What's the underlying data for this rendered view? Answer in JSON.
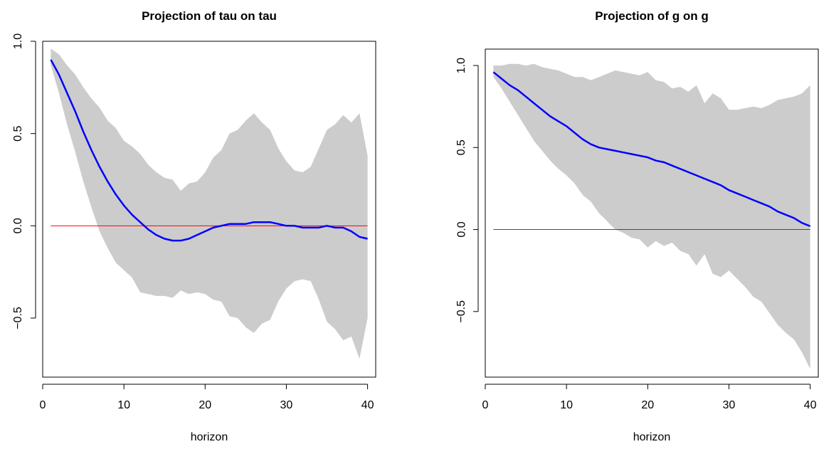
{
  "chart_data": [
    {
      "type": "line",
      "title": "Projection of tau on tau",
      "xlabel": "horizon",
      "ylabel": "",
      "xlim": [
        0,
        41
      ],
      "ylim": [
        -0.82,
        1.0
      ],
      "xticks": [
        0,
        10,
        20,
        30,
        40
      ],
      "yticks": [
        -0.5,
        0.0,
        0.5,
        1.0
      ],
      "ytick_labels": [
        "−0.5",
        "0.0",
        "0.5",
        "1.0"
      ],
      "grid": false,
      "zero_line": {
        "y": 0.0,
        "color": "#ff0000"
      },
      "colors": {
        "line": "#0000ff",
        "band": "#cccccc",
        "zero": "#ff0000"
      },
      "x": [
        1,
        2,
        3,
        4,
        5,
        6,
        7,
        8,
        9,
        10,
        11,
        12,
        13,
        14,
        15,
        16,
        17,
        18,
        19,
        20,
        21,
        22,
        23,
        24,
        25,
        26,
        27,
        28,
        29,
        30,
        31,
        32,
        33,
        34,
        35,
        36,
        37,
        38,
        39,
        40
      ],
      "series": [
        {
          "values": [
            0.9,
            0.82,
            0.72,
            0.62,
            0.51,
            0.41,
            0.32,
            0.24,
            0.17,
            0.11,
            0.06,
            0.02,
            -0.02,
            -0.05,
            -0.07,
            -0.08,
            -0.08,
            -0.07,
            -0.05,
            -0.03,
            -0.01,
            0.0,
            0.01,
            0.01,
            0.01,
            0.02,
            0.02,
            0.02,
            0.01,
            0.0,
            0.0,
            -0.01,
            -0.01,
            -0.01,
            0.0,
            -0.01,
            -0.01,
            -0.03,
            -0.06,
            -0.07
          ]
        },
        {
          "type": "band",
          "lower": [
            0.87,
            0.72,
            0.55,
            0.4,
            0.24,
            0.1,
            -0.03,
            -0.12,
            -0.2,
            -0.24,
            -0.28,
            -0.36,
            -0.37,
            -0.38,
            -0.38,
            -0.39,
            -0.35,
            -0.37,
            -0.36,
            -0.37,
            -0.4,
            -0.41,
            -0.49,
            -0.5,
            -0.55,
            -0.58,
            -0.53,
            -0.51,
            -0.41,
            -0.34,
            -0.3,
            -0.29,
            -0.3,
            -0.4,
            -0.52,
            -0.56,
            -0.62,
            -0.6,
            -0.72,
            -0.5
          ],
          "upper": [
            0.96,
            0.93,
            0.87,
            0.82,
            0.75,
            0.69,
            0.64,
            0.57,
            0.53,
            0.46,
            0.43,
            0.39,
            0.33,
            0.29,
            0.26,
            0.25,
            0.19,
            0.23,
            0.24,
            0.29,
            0.37,
            0.41,
            0.5,
            0.52,
            0.57,
            0.61,
            0.56,
            0.52,
            0.42,
            0.35,
            0.3,
            0.29,
            0.32,
            0.42,
            0.52,
            0.55,
            0.6,
            0.56,
            0.61,
            0.38
          ]
        }
      ]
    },
    {
      "type": "line",
      "title": "Projection of g on g",
      "xlabel": "horizon",
      "ylabel": "",
      "xlim": [
        0,
        41
      ],
      "ylim": [
        -0.9,
        1.1
      ],
      "xticks": [
        0,
        10,
        20,
        30,
        40
      ],
      "yticks": [
        -0.5,
        0.0,
        0.5,
        1.0
      ],
      "ytick_labels": [
        "−0.5",
        "0.0",
        "0.5",
        "1.0"
      ],
      "grid": false,
      "zero_line": {
        "y": 0.0,
        "color": "#ff0000"
      },
      "colors": {
        "line": "#0000ff",
        "band": "#cccccc",
        "zero": "#ff0000"
      },
      "x": [
        1,
        2,
        3,
        4,
        5,
        6,
        7,
        8,
        9,
        10,
        11,
        12,
        13,
        14,
        15,
        16,
        17,
        18,
        19,
        20,
        21,
        22,
        23,
        24,
        25,
        26,
        27,
        28,
        29,
        30,
        31,
        32,
        33,
        34,
        35,
        36,
        37,
        38,
        39,
        40
      ],
      "series": [
        {
          "values": [
            0.96,
            0.92,
            0.88,
            0.85,
            0.81,
            0.77,
            0.73,
            0.69,
            0.66,
            0.63,
            0.59,
            0.55,
            0.52,
            0.5,
            0.49,
            0.48,
            0.47,
            0.46,
            0.45,
            0.44,
            0.42,
            0.41,
            0.39,
            0.37,
            0.35,
            0.33,
            0.31,
            0.29,
            0.27,
            0.24,
            0.22,
            0.2,
            0.18,
            0.16,
            0.14,
            0.11,
            0.09,
            0.07,
            0.04,
            0.02
          ]
        },
        {
          "type": "band",
          "lower": [
            0.93,
            0.86,
            0.78,
            0.7,
            0.62,
            0.54,
            0.48,
            0.42,
            0.37,
            0.33,
            0.28,
            0.21,
            0.17,
            0.1,
            0.05,
            0.0,
            -0.02,
            -0.05,
            -0.06,
            -0.11,
            -0.07,
            -0.1,
            -0.08,
            -0.13,
            -0.15,
            -0.22,
            -0.15,
            -0.27,
            -0.29,
            -0.25,
            -0.3,
            -0.35,
            -0.41,
            -0.44,
            -0.51,
            -0.58,
            -0.63,
            -0.67,
            -0.75,
            -0.85
          ],
          "upper": [
            1.0,
            1.0,
            1.01,
            1.01,
            1.0,
            1.01,
            0.99,
            0.98,
            0.97,
            0.95,
            0.93,
            0.93,
            0.91,
            0.93,
            0.95,
            0.97,
            0.96,
            0.95,
            0.94,
            0.96,
            0.91,
            0.9,
            0.86,
            0.87,
            0.84,
            0.88,
            0.77,
            0.83,
            0.8,
            0.73,
            0.73,
            0.74,
            0.75,
            0.74,
            0.76,
            0.79,
            0.8,
            0.81,
            0.83,
            0.88
          ]
        }
      ]
    }
  ]
}
